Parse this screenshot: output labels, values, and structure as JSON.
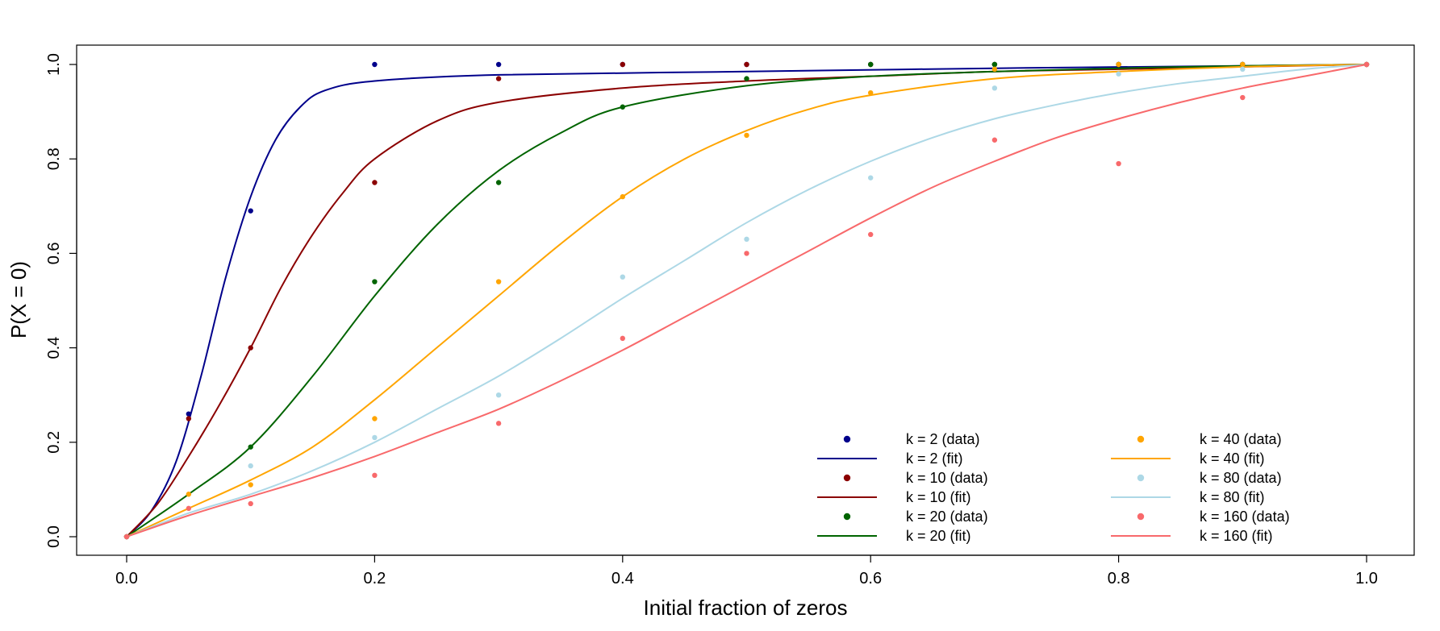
{
  "chart_data": {
    "type": "line",
    "title": "",
    "xlabel": "Initial fraction of zeros",
    "ylabel": "P(X = 0)",
    "xlim": [
      0,
      1
    ],
    "ylim": [
      0,
      1
    ],
    "xticks": [
      0.0,
      0.2,
      0.4,
      0.6,
      0.8,
      1.0
    ],
    "xtick_labels": [
      "0.0",
      "0.2",
      "0.4",
      "0.6",
      "0.8",
      "1.0"
    ],
    "yticks": [
      0.0,
      0.2,
      0.4,
      0.6,
      0.8,
      1.0
    ],
    "ytick_labels": [
      "0.0",
      "0.2",
      "0.4",
      "0.6",
      "0.8",
      "1.0"
    ],
    "grid": false,
    "legend_position": "bottom-right",
    "series": [
      {
        "name": "k = 2",
        "color": "#00008b",
        "data_label": "k = 2 (data)",
        "fit_label": "k = 2 (fit)",
        "data": [
          [
            0,
            0
          ],
          [
            0.05,
            0.26
          ],
          [
            0.1,
            0.69
          ],
          [
            0.2,
            1.0
          ],
          [
            0.3,
            1.0
          ],
          [
            0.4,
            1.0
          ],
          [
            0.5,
            1.0
          ],
          [
            0.6,
            1.0
          ],
          [
            0.7,
            1.0
          ],
          [
            0.8,
            1.0
          ],
          [
            0.9,
            1.0
          ],
          [
            1.0,
            1.0
          ]
        ],
        "fit": [
          [
            0,
            0
          ],
          [
            0.02,
            0.055
          ],
          [
            0.04,
            0.16
          ],
          [
            0.06,
            0.34
          ],
          [
            0.08,
            0.55
          ],
          [
            0.1,
            0.72
          ],
          [
            0.12,
            0.84
          ],
          [
            0.14,
            0.91
          ],
          [
            0.16,
            0.945
          ],
          [
            0.2,
            0.965
          ],
          [
            0.3,
            0.978
          ],
          [
            0.5,
            0.985
          ],
          [
            0.7,
            0.992
          ],
          [
            0.9,
            0.997
          ],
          [
            1.0,
            1.0
          ]
        ]
      },
      {
        "name": "k = 10",
        "color": "#8b0000",
        "data_label": "k = 10 (data)",
        "fit_label": "k = 10 (fit)",
        "data": [
          [
            0,
            0
          ],
          [
            0.05,
            0.25
          ],
          [
            0.1,
            0.4
          ],
          [
            0.2,
            0.75
          ],
          [
            0.3,
            0.97
          ],
          [
            0.4,
            1.0
          ],
          [
            0.5,
            1.0
          ],
          [
            0.6,
            1.0
          ],
          [
            0.7,
            1.0
          ],
          [
            0.8,
            1.0
          ],
          [
            0.9,
            1.0
          ],
          [
            1.0,
            1.0
          ]
        ],
        "fit": [
          [
            0,
            0
          ],
          [
            0.025,
            0.07
          ],
          [
            0.05,
            0.17
          ],
          [
            0.075,
            0.28
          ],
          [
            0.1,
            0.4
          ],
          [
            0.125,
            0.53
          ],
          [
            0.15,
            0.64
          ],
          [
            0.175,
            0.73
          ],
          [
            0.2,
            0.8
          ],
          [
            0.25,
            0.88
          ],
          [
            0.3,
            0.92
          ],
          [
            0.4,
            0.95
          ],
          [
            0.5,
            0.965
          ],
          [
            0.6,
            0.975
          ],
          [
            0.7,
            0.985
          ],
          [
            0.8,
            0.99
          ],
          [
            0.9,
            0.995
          ],
          [
            1.0,
            1.0
          ]
        ]
      },
      {
        "name": "k = 20",
        "color": "#006400",
        "data_label": "k = 20 (data)",
        "fit_label": "k = 20 (fit)",
        "data": [
          [
            0,
            0
          ],
          [
            0.1,
            0.19
          ],
          [
            0.2,
            0.54
          ],
          [
            0.3,
            0.75
          ],
          [
            0.4,
            0.91
          ],
          [
            0.5,
            0.97
          ],
          [
            0.6,
            1.0
          ],
          [
            0.7,
            1.0
          ],
          [
            0.8,
            1.0
          ],
          [
            0.9,
            1.0
          ],
          [
            1.0,
            1.0
          ]
        ],
        "fit": [
          [
            0,
            0
          ],
          [
            0.05,
            0.09
          ],
          [
            0.1,
            0.19
          ],
          [
            0.15,
            0.34
          ],
          [
            0.2,
            0.51
          ],
          [
            0.25,
            0.66
          ],
          [
            0.3,
            0.775
          ],
          [
            0.35,
            0.855
          ],
          [
            0.4,
            0.91
          ],
          [
            0.5,
            0.955
          ],
          [
            0.6,
            0.975
          ],
          [
            0.7,
            0.985
          ],
          [
            0.8,
            0.992
          ],
          [
            0.9,
            0.997
          ],
          [
            1.0,
            1.0
          ]
        ]
      },
      {
        "name": "k = 40",
        "color": "#ffa500",
        "data_label": "k = 40 (data)",
        "fit_label": "k = 40 (fit)",
        "data": [
          [
            0,
            0
          ],
          [
            0.05,
            0.09
          ],
          [
            0.1,
            0.11
          ],
          [
            0.2,
            0.25
          ],
          [
            0.3,
            0.54
          ],
          [
            0.4,
            0.72
          ],
          [
            0.5,
            0.85
          ],
          [
            0.6,
            0.94
          ],
          [
            0.7,
            0.99
          ],
          [
            0.8,
            1.0
          ],
          [
            0.9,
            1.0
          ],
          [
            1.0,
            1.0
          ]
        ],
        "fit": [
          [
            0,
            0
          ],
          [
            0.05,
            0.06
          ],
          [
            0.1,
            0.12
          ],
          [
            0.15,
            0.19
          ],
          [
            0.2,
            0.29
          ],
          [
            0.25,
            0.4
          ],
          [
            0.3,
            0.51
          ],
          [
            0.35,
            0.62
          ],
          [
            0.4,
            0.72
          ],
          [
            0.45,
            0.8
          ],
          [
            0.5,
            0.86
          ],
          [
            0.55,
            0.905
          ],
          [
            0.6,
            0.935
          ],
          [
            0.7,
            0.97
          ],
          [
            0.8,
            0.985
          ],
          [
            0.9,
            0.995
          ],
          [
            1.0,
            1.0
          ]
        ]
      },
      {
        "name": "k = 80",
        "color": "#add8e6",
        "data_label": "k = 80 (data)",
        "fit_label": "k = 80 (fit)",
        "data": [
          [
            0,
            0
          ],
          [
            0.1,
            0.15
          ],
          [
            0.2,
            0.21
          ],
          [
            0.3,
            0.3
          ],
          [
            0.4,
            0.55
          ],
          [
            0.5,
            0.63
          ],
          [
            0.6,
            0.76
          ],
          [
            0.7,
            0.95
          ],
          [
            0.8,
            0.98
          ],
          [
            0.9,
            0.99
          ],
          [
            1.0,
            1.0
          ]
        ],
        "fit": [
          [
            0,
            0
          ],
          [
            0.05,
            0.05
          ],
          [
            0.1,
            0.09
          ],
          [
            0.15,
            0.14
          ],
          [
            0.2,
            0.2
          ],
          [
            0.25,
            0.27
          ],
          [
            0.3,
            0.34
          ],
          [
            0.35,
            0.42
          ],
          [
            0.4,
            0.505
          ],
          [
            0.45,
            0.585
          ],
          [
            0.5,
            0.665
          ],
          [
            0.55,
            0.735
          ],
          [
            0.6,
            0.795
          ],
          [
            0.65,
            0.845
          ],
          [
            0.7,
            0.885
          ],
          [
            0.75,
            0.915
          ],
          [
            0.8,
            0.94
          ],
          [
            0.85,
            0.96
          ],
          [
            0.9,
            0.975
          ],
          [
            0.95,
            0.99
          ],
          [
            1.0,
            1.0
          ]
        ]
      },
      {
        "name": "k = 160",
        "color": "#f8696b",
        "data_label": "k = 160 (data)",
        "fit_label": "k = 160 (fit)",
        "data": [
          [
            0,
            0
          ],
          [
            0.05,
            0.06
          ],
          [
            0.1,
            0.07
          ],
          [
            0.2,
            0.13
          ],
          [
            0.3,
            0.24
          ],
          [
            0.4,
            0.42
          ],
          [
            0.5,
            0.6
          ],
          [
            0.6,
            0.64
          ],
          [
            0.7,
            0.84
          ],
          [
            0.8,
            0.79
          ],
          [
            0.9,
            0.93
          ],
          [
            1.0,
            1.0
          ]
        ],
        "fit": [
          [
            0,
            0
          ],
          [
            0.05,
            0.045
          ],
          [
            0.1,
            0.085
          ],
          [
            0.15,
            0.125
          ],
          [
            0.2,
            0.17
          ],
          [
            0.25,
            0.22
          ],
          [
            0.3,
            0.27
          ],
          [
            0.35,
            0.33
          ],
          [
            0.4,
            0.395
          ],
          [
            0.45,
            0.465
          ],
          [
            0.5,
            0.535
          ],
          [
            0.55,
            0.605
          ],
          [
            0.6,
            0.675
          ],
          [
            0.65,
            0.74
          ],
          [
            0.7,
            0.795
          ],
          [
            0.75,
            0.845
          ],
          [
            0.8,
            0.885
          ],
          [
            0.85,
            0.92
          ],
          [
            0.9,
            0.95
          ],
          [
            0.95,
            0.975
          ],
          [
            1.0,
            1.0
          ]
        ]
      }
    ]
  }
}
